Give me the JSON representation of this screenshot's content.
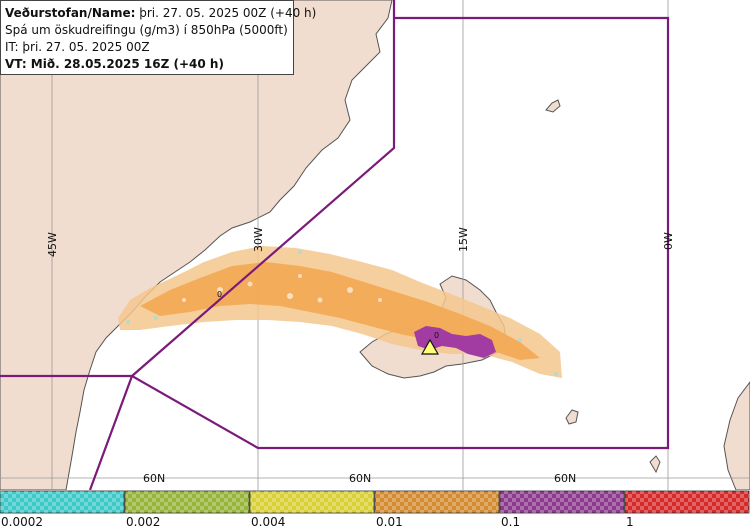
{
  "info": {
    "line1_label": "Veðurstofan/Name:",
    "line1_value": " þri. 27. 05. 2025 00Z (+40 h)",
    "line2": "Spá um öskudreifingu (g/m3) í 850hPa (5000ft)",
    "line3": "IT: þri. 27. 05. 2025 00Z",
    "line4": "VT: Mið. 28.05.2025 16Z (+40 h)"
  },
  "map": {
    "meridian_labels": [
      "45W",
      "30W",
      "15W",
      "0W"
    ],
    "parallel_labels": [
      "60N",
      "60N",
      "60N"
    ],
    "source_marker": "0",
    "plume_marker": "0",
    "colors": {
      "sea": "#ffffff",
      "land": "#f1ddd0",
      "coast": "#555555",
      "boundary": "#7a1a7a",
      "grid": "#9a9a9a",
      "ash_low": "#f5c78e",
      "ash_mid": "#f3a952",
      "ash_high": "#a23ca2"
    }
  },
  "colorbar": {
    "ticks": [
      "0.0002",
      "0.002",
      "0.004",
      "0.01",
      "0.1",
      "1"
    ],
    "colors": [
      "#3ec9c9",
      "#96b437",
      "#d8d035",
      "#d48a2f",
      "#8c3a8c",
      "#d62a2a"
    ]
  }
}
